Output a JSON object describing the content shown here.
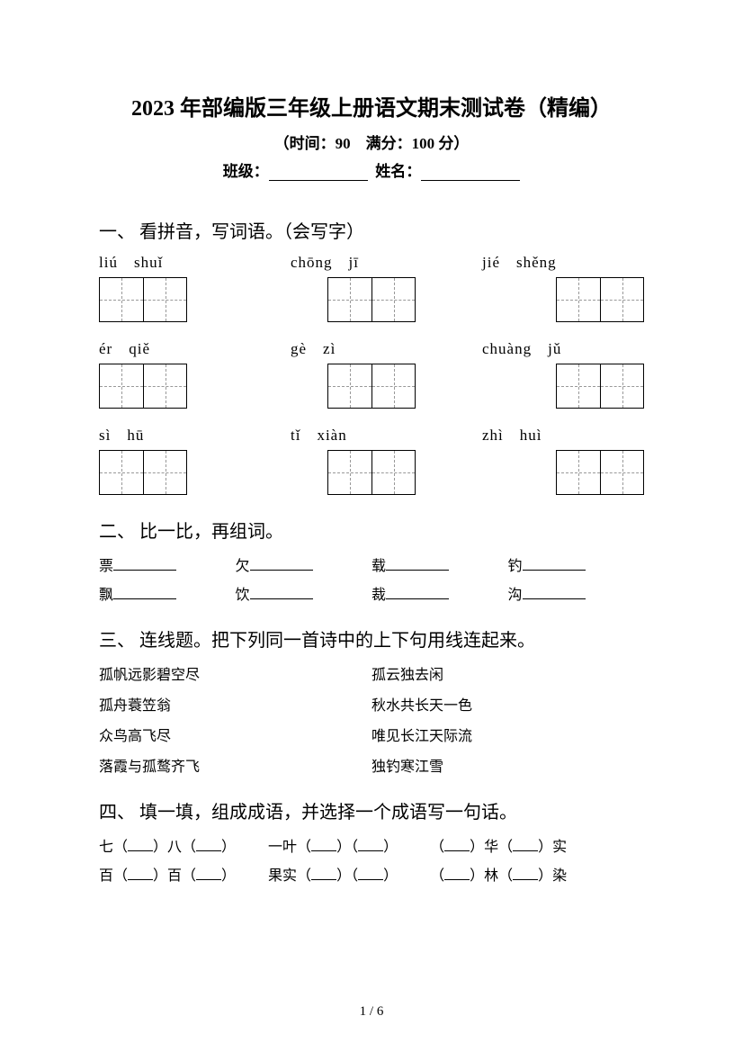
{
  "colors": {
    "text": "#000000",
    "bg": "#ffffff",
    "dash": "#999999"
  },
  "title": "2023 年部编版三年级上册语文期末测试卷（精编）",
  "subtitle": "（时间：90　满分：100 分）",
  "info": {
    "class_label": "班级：",
    "name_label": "姓名："
  },
  "q1": {
    "heading": "一、 看拼音，写词语。（会写字）",
    "rows": [
      [
        [
          "liú",
          "shuǐ"
        ],
        [
          "chōng",
          "jī"
        ],
        [
          "jié",
          "shěng"
        ]
      ],
      [
        [
          "ér",
          "qiě"
        ],
        [
          "gè",
          "zì"
        ],
        [
          "chuàng",
          "jǔ"
        ]
      ],
      [
        [
          "sì",
          "hū"
        ],
        [
          "tǐ",
          "xiàn"
        ],
        [
          "zhì",
          "huì"
        ]
      ]
    ]
  },
  "q2": {
    "heading": "二、 比一比，再组词。",
    "pairs": [
      [
        "票",
        "欠",
        "载",
        "钓"
      ],
      [
        "飘",
        "饮",
        "裁",
        "沟"
      ]
    ]
  },
  "q3": {
    "heading": "三、 连线题。把下列同一首诗中的上下句用线连起来。",
    "left": [
      "孤帆远影碧空尽",
      "孤舟蓑笠翁",
      "众鸟高飞尽",
      "落霞与孤鹜齐飞"
    ],
    "right": [
      "孤云独去闲",
      "秋水共长天一色",
      "唯见长江天际流",
      "独钓寒江雪"
    ]
  },
  "q4": {
    "heading": "四、 填一填，组成成语，并选择一个成语写一句话。",
    "items": [
      {
        "parts": [
          "七（",
          "）八（",
          "）"
        ]
      },
      {
        "parts": [
          "一叶（",
          "）（",
          "）"
        ]
      },
      {
        "parts": [
          "（",
          "）华（",
          "）实"
        ]
      },
      {
        "parts": [
          "百（",
          "）百（",
          "）"
        ]
      },
      {
        "parts": [
          "果实（",
          "）（",
          "）"
        ]
      },
      {
        "parts": [
          "（",
          "）林（",
          "）染"
        ]
      }
    ]
  },
  "page": {
    "current": "1",
    "sep": " / ",
    "total": "6"
  }
}
